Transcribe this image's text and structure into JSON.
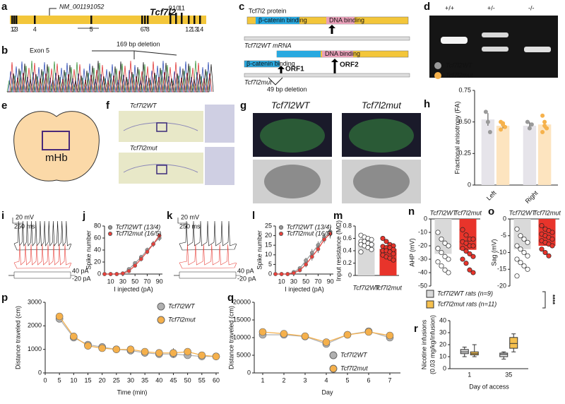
{
  "panels": {
    "a": {
      "label": "a",
      "accession": "NM_001191052",
      "gene": "Tcf7l2",
      "exons": [
        "1",
        "2",
        "3",
        "4",
        "5",
        "6",
        "7",
        "8",
        "9",
        "10",
        "11",
        "12",
        "13",
        "14"
      ]
    },
    "b": {
      "label": "b",
      "exon": "Exon 5",
      "deletion": "169 bp deletion"
    },
    "c": {
      "label": "c",
      "protein": "Tcf7l2 protein",
      "domain1": "β-catenin binding",
      "domain2": "DNA binding",
      "wt_mrna": "Tcf7l2WT mRNA",
      "mut_domain1": "β-catenin binding",
      "mut_domain2": "DNA binding",
      "orf1": "ORF1",
      "orf2": "ORF2",
      "mut": "Tcf7l2mut",
      "deletion": "49 bp deletion"
    },
    "d": {
      "label": "d",
      "genotypes": [
        "+/+",
        "+/-",
        "-/-"
      ]
    },
    "e": {
      "label": "e",
      "region": "mHb"
    },
    "f": {
      "label": "f",
      "wt": "Tcf7l2WT",
      "mut": "Tcf7l2mut"
    },
    "g": {
      "label": "g",
      "wt": "Tcf7l2WT",
      "mut": "Tcf7l2mut"
    },
    "i": {
      "label": "i",
      "voltage": "20 mV",
      "time": "250 ms",
      "current_high": "40 pA",
      "current_low": "-20 pA"
    },
    "k": {
      "label": "k",
      "voltage": "20 mV",
      "time": "250 ms",
      "current_high": "40 pA",
      "current_low": "-20 pA"
    }
  },
  "chart_data": [
    {
      "type": "bar",
      "label": "h",
      "ylabel": "Fractional anisotropy (FA)",
      "categories": [
        "Left",
        "Right"
      ],
      "series": [
        {
          "name": "Tcf7l2WT",
          "color": "#9a9a9a",
          "bar_color": "#e6e4ea",
          "values": [
            0.52,
            0.47
          ],
          "errors": [
            0.05,
            0.03
          ],
          "points": [
            [
              0.58,
              0.5,
              0.42
            ],
            [
              0.5,
              0.45,
              0.48
            ]
          ]
        },
        {
          "name": "Tcf7l2mut",
          "color": "#f6b24c",
          "bar_color": "#fde4bf",
          "values": [
            0.47,
            0.48
          ],
          "errors": [
            0.02,
            0.03
          ],
          "points": [
            [
              0.5,
              0.48,
              0.46,
              0.44,
              0.49
            ],
            [
              0.55,
              0.5,
              0.45,
              0.42,
              0.47
            ]
          ]
        }
      ],
      "ylim": [
        0,
        0.75
      ],
      "yticks": [
        0,
        0.25,
        {
          "value": 0.5,
          "label": "0.50"
        },
        0.75
      ]
    },
    {
      "type": "line",
      "label": "j",
      "xlabel": "I injected (pA)",
      "ylabel": "Spike number",
      "x": [
        0,
        10,
        20,
        30,
        40,
        50,
        60,
        70,
        80,
        90
      ],
      "series": [
        {
          "name": "Tcf7l2WT (13/4)",
          "color": "#9a9a9a",
          "values": [
            0,
            0,
            0,
            1,
            8,
            18,
            28,
            40,
            50,
            60
          ],
          "errors": [
            0,
            0,
            0,
            1,
            2,
            3,
            4,
            4,
            5,
            5
          ]
        },
        {
          "name": "Tcf7l2mut (16/5)",
          "color": "#e8403a",
          "values": [
            0,
            0,
            0,
            1,
            5,
            14,
            25,
            37,
            50,
            64
          ],
          "errors": [
            0,
            0,
            0,
            1,
            2,
            3,
            4,
            4,
            5,
            5
          ]
        }
      ],
      "xlim": [
        0,
        95
      ],
      "xticks": [
        10,
        30,
        50,
        70,
        90
      ],
      "ylim": [
        0,
        80
      ],
      "yticks": [
        0,
        20,
        40,
        60,
        80
      ]
    },
    {
      "type": "line",
      "label": "l",
      "xlabel": "I injected (pA)",
      "ylabel": "Spike number",
      "x": [
        0,
        10,
        20,
        30,
        40,
        50,
        60,
        70,
        80,
        90
      ],
      "series": [
        {
          "name": "Tcf7l2WT (13/4)",
          "color": "#9a9a9a",
          "values": [
            0,
            0,
            0,
            1,
            3,
            7,
            11,
            15,
            19,
            22
          ],
          "errors": [
            0,
            0,
            0,
            0.5,
            1,
            1.5,
            2,
            2,
            2,
            2.5
          ]
        },
        {
          "name": "Tcf7l2mut (16/5)",
          "color": "#e8403a",
          "values": [
            0,
            0,
            0,
            0.5,
            2,
            5,
            9,
            13,
            18,
            21
          ],
          "errors": [
            0,
            0,
            0,
            0.5,
            1,
            1.5,
            2,
            2,
            2,
            2.5
          ]
        }
      ],
      "xlim": [
        0,
        95
      ],
      "xticks": [
        10,
        30,
        50,
        70,
        90
      ],
      "ylim": [
        0,
        25
      ],
      "yticks": [
        0,
        5,
        10,
        15,
        20,
        25
      ]
    },
    {
      "type": "bar",
      "label": "m",
      "ylabel": "Input resistance (MΩ)",
      "categories": [
        "Tcf7l2WT",
        "Tcf7l2mut"
      ],
      "values": [
        0.53,
        0.43
      ],
      "colors": [
        "#d9d9d9",
        "#e8342b"
      ],
      "point_colors": [
        "#ffffff",
        "#e8342b"
      ],
      "points": [
        [
          0.65,
          0.62,
          0.6,
          0.58,
          0.55,
          0.55,
          0.52,
          0.5,
          0.5,
          0.48,
          0.45,
          0.42,
          0.38
        ],
        [
          0.6,
          0.55,
          0.5,
          0.48,
          0.47,
          0.45,
          0.45,
          0.42,
          0.4,
          0.4,
          0.38,
          0.35,
          0.33,
          0.3,
          0.28,
          0.25
        ]
      ],
      "ylim": [
        0,
        0.8
      ],
      "yticks": [
        0,
        0.2,
        0.4,
        0.6,
        0.8
      ]
    },
    {
      "type": "bar",
      "label": "n",
      "ylabel": "AHP (mV)",
      "categories": [
        "Tcf7l2WT",
        "Tcf7l2mut"
      ],
      "values": [
        -26,
        -23
      ],
      "colors": [
        "#d9d9d9",
        "#e8342b"
      ],
      "point_colors": [
        "#ffffff",
        "#e8342b"
      ],
      "points": [
        [
          -10,
          -15,
          -18,
          -20,
          -22,
          -25,
          -28,
          -30,
          -32,
          -35,
          -38,
          -40
        ],
        [
          -8,
          -12,
          -15,
          -15,
          -17,
          -18,
          -20,
          -20,
          -22,
          -24,
          -26,
          -28,
          -30,
          -33,
          -38,
          -40
        ]
      ],
      "ylim": [
        -50,
        0
      ],
      "yticks": [
        -50,
        -40,
        -30,
        -20,
        -10,
        0
      ]
    },
    {
      "type": "bar",
      "label": "o",
      "ylabel": "Sag (mV)",
      "categories": [
        "Tcf7l2WT",
        "Tcf7l2mut"
      ],
      "values": [
        -9,
        -8
      ],
      "colors": [
        "#d9d9d9",
        "#e8342b"
      ],
      "point_colors": [
        "#ffffff",
        "#e8342b"
      ],
      "points": [
        [
          -3,
          -5,
          -6,
          -7,
          -8,
          -9,
          -10,
          -11,
          -12,
          -13,
          -14,
          -15,
          -17
        ],
        [
          -2,
          -3,
          -3.5,
          -4,
          -4.5,
          -5,
          -5.5,
          -6,
          -6.5,
          -7,
          -7.5,
          -8,
          -9,
          -10,
          -11
        ]
      ],
      "ylim": [
        -20,
        0
      ],
      "yticks": [
        -20,
        -15,
        -10,
        -5,
        0
      ]
    },
    {
      "type": "line",
      "label": "p",
      "xlabel": "Time (min)",
      "ylabel": "Distance traveled (cm)",
      "x": [
        5,
        10,
        15,
        20,
        25,
        30,
        35,
        40,
        45,
        50,
        55,
        60
      ],
      "series": [
        {
          "name": "Tcf7l2WT",
          "color": "#b0b0b0",
          "values": [
            2300,
            1500,
            1200,
            1100,
            1000,
            950,
            850,
            800,
            800,
            750,
            700,
            700
          ],
          "errors": [
            100,
            80,
            60,
            60,
            60,
            70,
            60,
            60,
            70,
            60,
            60,
            60
          ]
        },
        {
          "name": "Tcf7l2mut",
          "color": "#f5b04b",
          "values": [
            2400,
            1550,
            1150,
            1050,
            1000,
            1000,
            900,
            850,
            850,
            900,
            750,
            700
          ],
          "errors": [
            100,
            100,
            80,
            80,
            80,
            100,
            100,
            150,
            200,
            150,
            100,
            80
          ]
        }
      ],
      "xlim": [
        0,
        61
      ],
      "xticks": [
        0,
        5,
        10,
        15,
        20,
        25,
        30,
        35,
        40,
        45,
        50,
        55,
        60
      ],
      "ylim": [
        0,
        3000
      ],
      "yticks": [
        0,
        1000,
        2000,
        3000
      ]
    },
    {
      "type": "line",
      "label": "q",
      "xlabel": "Day",
      "ylabel": "Distance traveled (cm)",
      "x": [
        1,
        2,
        3,
        4,
        5,
        6,
        7
      ],
      "series": [
        {
          "name": "Tcf7l2WT",
          "color": "#b0b0b0",
          "values": [
            10800,
            10800,
            10300,
            8200,
            10800,
            11800,
            10000
          ],
          "errors": [
            500,
            500,
            600,
            500,
            600,
            700,
            600
          ]
        },
        {
          "name": "Tcf7l2mut",
          "color": "#f5b04b",
          "values": [
            11600,
            11100,
            10400,
            8700,
            10800,
            11600,
            10600
          ],
          "errors": [
            600,
            500,
            600,
            600,
            600,
            800,
            700
          ]
        }
      ],
      "xlim": [
        0.6,
        7.5
      ],
      "xticks": [
        1,
        2,
        3,
        4,
        5,
        6,
        7
      ],
      "ylim": [
        0,
        20000
      ],
      "yticks": [
        0,
        5000,
        10000,
        15000,
        20000
      ]
    },
    {
      "type": "box",
      "label": "r",
      "xlabel": "Day of access",
      "ylabel": [
        "Nicotine infusions",
        "(0.03 mg/kg/infusion)"
      ],
      "categories": [
        "1",
        "35"
      ],
      "series": [
        {
          "name": "Tcf7l2WT rats (n=9)",
          "color": "#d9d9d9",
          "boxes": [
            [
              10,
              12.5,
              14,
              16,
              18
            ],
            [
              8,
              10,
              12,
              13,
              14
            ]
          ]
        },
        {
          "name": "Tcf7l2mut rats (n=11)",
          "color": "#f6c04e",
          "boxes": [
            [
              10,
              11.5,
              12.5,
              14,
              20
            ],
            [
              14,
              17,
              21,
              26,
              29
            ]
          ]
        }
      ],
      "annotation": "****",
      "ylim": [
        0,
        40
      ],
      "yticks": [
        0,
        10,
        20,
        30,
        40
      ]
    }
  ]
}
